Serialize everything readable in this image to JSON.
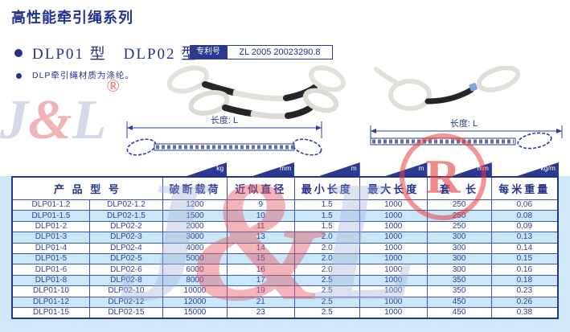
{
  "page": {
    "title": "高性能牵引绳系列",
    "models_line": "DLP01 型　DLP02 型",
    "patent": {
      "label": "专利号",
      "number": "ZL 2005 20023290.8"
    },
    "material_note": "DLP牵引绳材质为涤纶。"
  },
  "watermarks": {
    "logo_j": "J",
    "logo_amp": "&",
    "logo_l": "L",
    "registered": "®",
    "registered_letter": "R"
  },
  "diagrams": {
    "left_length_label": "长度: L",
    "right_length_label": "长度: L"
  },
  "colors": {
    "navy": "#2b3990",
    "title_navy": "#21338e",
    "row_alt_blue": "#c9e7f8",
    "panel_blue": "#cfe9f8",
    "watermark_red": "#e25a62",
    "rope_white": "#e2e2da",
    "sleeve_black": "#26262a"
  },
  "table": {
    "product_model_header": "产 品 型 号",
    "columns": [
      {
        "label": "破断载荷",
        "unit": "kg"
      },
      {
        "label": "近似直径",
        "unit": "mm"
      },
      {
        "label": "最小长度",
        "unit": "m"
      },
      {
        "label": "最大长度",
        "unit": "m"
      },
      {
        "label": "套　长",
        "unit": "mm"
      },
      {
        "label": "每米重量",
        "unit": "kg/m"
      }
    ],
    "rows": [
      [
        "DLP01-1.2",
        "DLP02-1.2",
        "1200",
        "9",
        "1.5",
        "1000",
        "250",
        "0.06"
      ],
      [
        "DLP01-1.5",
        "DLP02-1.5",
        "1500",
        "10",
        "1.5",
        "1000",
        "250",
        "0.08"
      ],
      [
        "DLP01-2",
        "DLP02-2",
        "2000",
        "11",
        "1.5",
        "1000",
        "250",
        "0.09"
      ],
      [
        "DLP01-3",
        "DLP02-3",
        "3000",
        "13",
        "2.0",
        "1000",
        "300",
        "0.13"
      ],
      [
        "DLP01-4",
        "DLP02-4",
        "4000",
        "14",
        "2.0",
        "1000",
        "300",
        "0.14"
      ],
      [
        "DLP01-5",
        "DLP02-5",
        "5000",
        "15",
        "2.0",
        "1000",
        "300",
        "0.15"
      ],
      [
        "DLP01-6",
        "DLP02-6",
        "6000",
        "16",
        "2.0",
        "1000",
        "300",
        "0.16"
      ],
      [
        "DLP01-8",
        "DLP02-8",
        "8000",
        "17",
        "2.5",
        "1000",
        "350",
        "0.18"
      ],
      [
        "DLP01-10",
        "DLP02-10",
        "10000",
        "19",
        "2.5",
        "1000",
        "350",
        "0.23"
      ],
      [
        "DLP01-12",
        "DLP02-12",
        "12000",
        "21",
        "2.5",
        "1000",
        "450",
        "0.26"
      ],
      [
        "DLP01-15",
        "DLP02-15",
        "15000",
        "23",
        "2.5",
        "1000",
        "450",
        "0.38"
      ]
    ]
  }
}
